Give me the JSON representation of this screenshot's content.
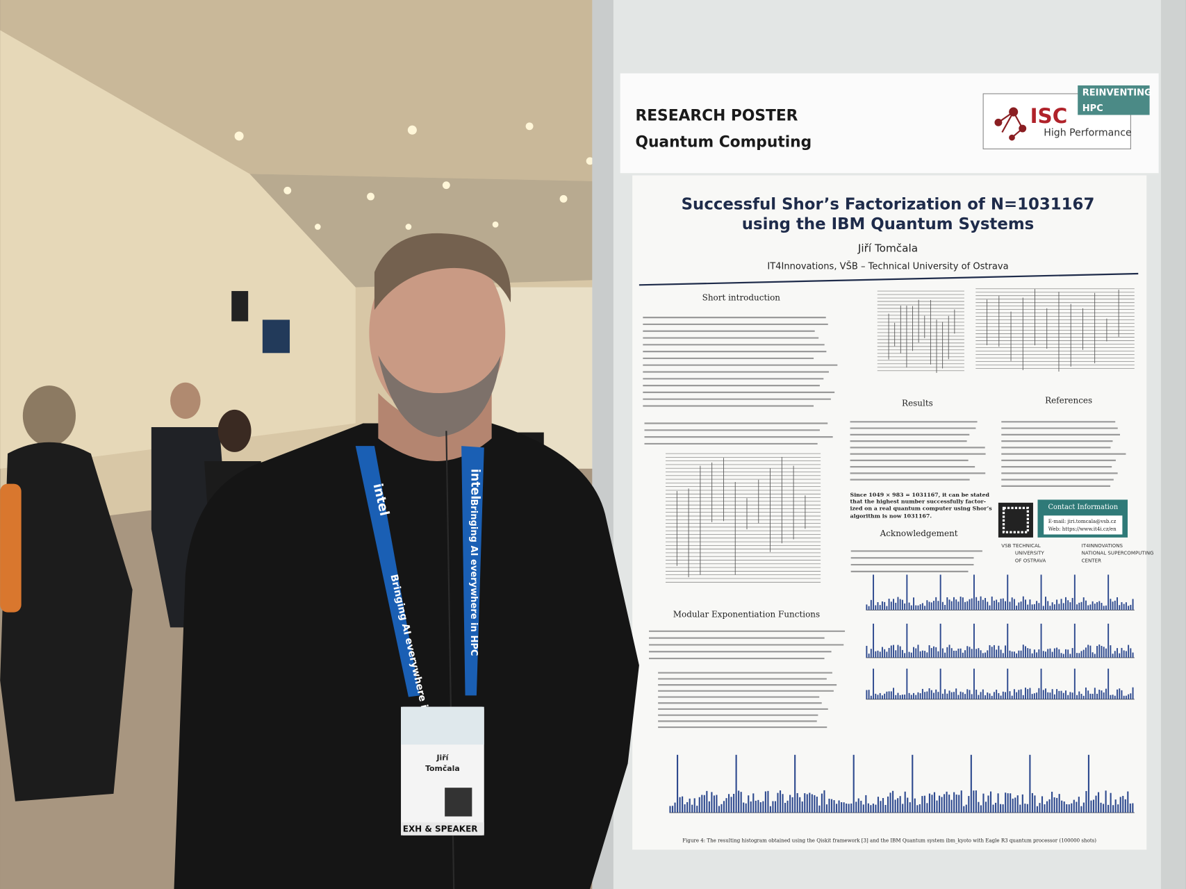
{
  "header": {
    "label": "RESEARCH POSTER",
    "topic": "Quantum Computing",
    "logo": {
      "name": "ISC",
      "tagline": "High Performance",
      "banner": [
        "REINVENTING",
        "HPC"
      ]
    }
  },
  "poster": {
    "title": [
      "Successful Shor’s Factorization of N=1031167",
      "using the IBM Quantum Systems"
    ],
    "author": "Jiří Tomčala",
    "affiliation": "IT4Innovations, VŠB – Technical University of Ostrava",
    "sections": {
      "intro": "Short introduction",
      "results": "Results",
      "references": "References",
      "acknowledgement": "Acknowledgement",
      "mef": "Modular Exponentiation Functions"
    },
    "conclusion": [
      "Since 1049 × 983 = 1031167, it can be stated",
      "that the highest number successfully factor-",
      "ized on a real quantum computer using Shor’s",
      "algorithm is now 1031167."
    ],
    "contact": {
      "title": "Contact Information",
      "email": "E-mail: jiri.tomcala@vsb.cz",
      "web": "Web: https://www.it4i.cz/en"
    },
    "logos": [
      [
        "VSB TECHNICAL",
        "UNIVERSITY",
        "OF OSTRAVA"
      ],
      [
        "IT4INNOVATIONS",
        "NATIONAL SUPERCOMPUTING",
        "CENTER"
      ]
    ],
    "figure4_caption": "Figure 4: The resulting histogram obtained using the Qiskit framework [3] and the IBM Quantum system ibm_kyoto with Eagle R3 quantum processor (100000 shots)"
  },
  "lanyard": {
    "brand": "intel",
    "slogan": "Bringing AI everywhere in HPC"
  },
  "badge": {
    "name": [
      "Jiří",
      "Tomčala"
    ],
    "role": "EXH & SPEAKER"
  }
}
